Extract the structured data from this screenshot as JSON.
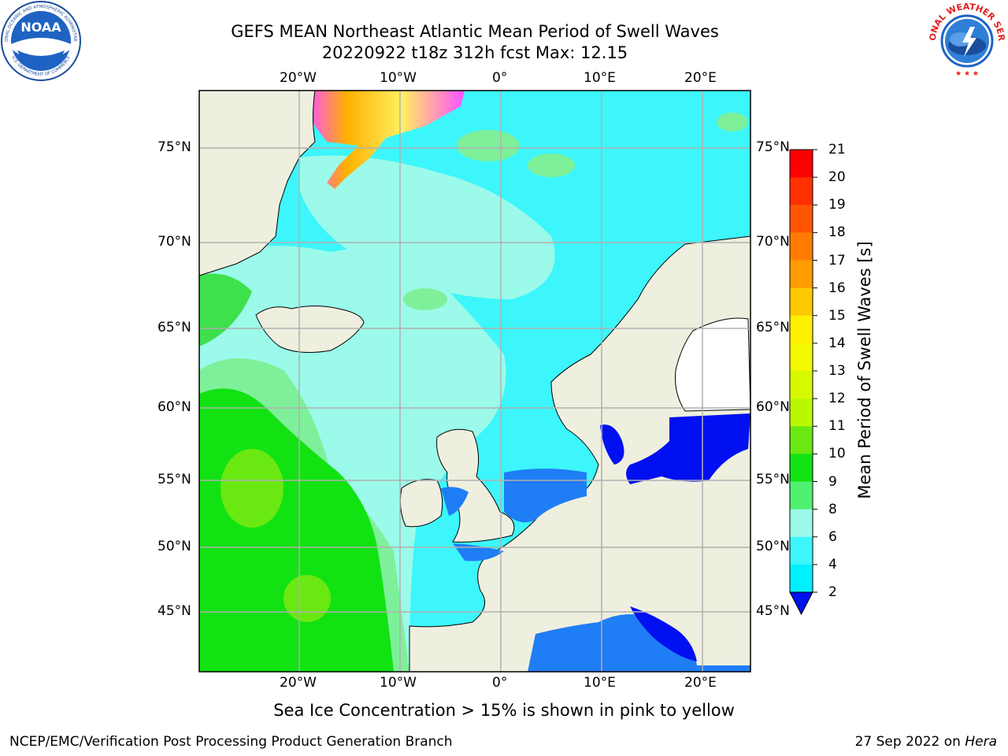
{
  "header": {
    "title_line1": "GEFS MEAN Northeast Atlantic Mean Period of Swell Waves",
    "title_line2": "20220922 t18z 312h fcst   Max: 12.15"
  },
  "logos": {
    "left": "noaa-logo",
    "right": "national-weather-service-logo"
  },
  "map": {
    "lon_labels": [
      "20°W",
      "10°W",
      "0°",
      "10°E",
      "20°E"
    ],
    "lat_labels": [
      "75°N",
      "70°N",
      "65°N",
      "60°N",
      "55°N",
      "50°N",
      "45°N"
    ],
    "colors": {
      "land": "#efefdf",
      "ocean_cyan": "#3cf6fb",
      "light_cyan": "#9cfafa",
      "pale_green": "#7ef09a",
      "green": "#3ee04c",
      "bright_green": "#12e212",
      "blue": "#1f7df5",
      "deep_blue": "#0010f0",
      "ice_pink": "#ff50ff",
      "ice_yellow": "#fff050",
      "grid": "#b0b0b0"
    }
  },
  "colorbar": {
    "title": "Mean Period of Swell Waves [s]",
    "ticks": [
      "21",
      "20",
      "19",
      "18",
      "17",
      "16",
      "15",
      "14",
      "13",
      "12",
      "11",
      "10",
      "9",
      "8",
      "6",
      "4",
      "2"
    ],
    "colors": [
      "#ff0000",
      "#ff3000",
      "#ff5400",
      "#ff7c00",
      "#ff9c00",
      "#ffc800",
      "#fff000",
      "#f4f800",
      "#d8f800",
      "#b8f800",
      "#6ae812",
      "#12e212",
      "#4ef070",
      "#9cfaea",
      "#3cf6fb",
      "#00f0ff",
      "#00c8ff",
      "#1f7df5"
    ]
  },
  "caption": "Sea Ice Concentration > 15% is shown in pink to yellow",
  "footer": {
    "left": "NCEP/EMC/Verification Post Processing Product Generation Branch",
    "right_date": "27 Sep 2022 on ",
    "right_host": "Hera"
  }
}
